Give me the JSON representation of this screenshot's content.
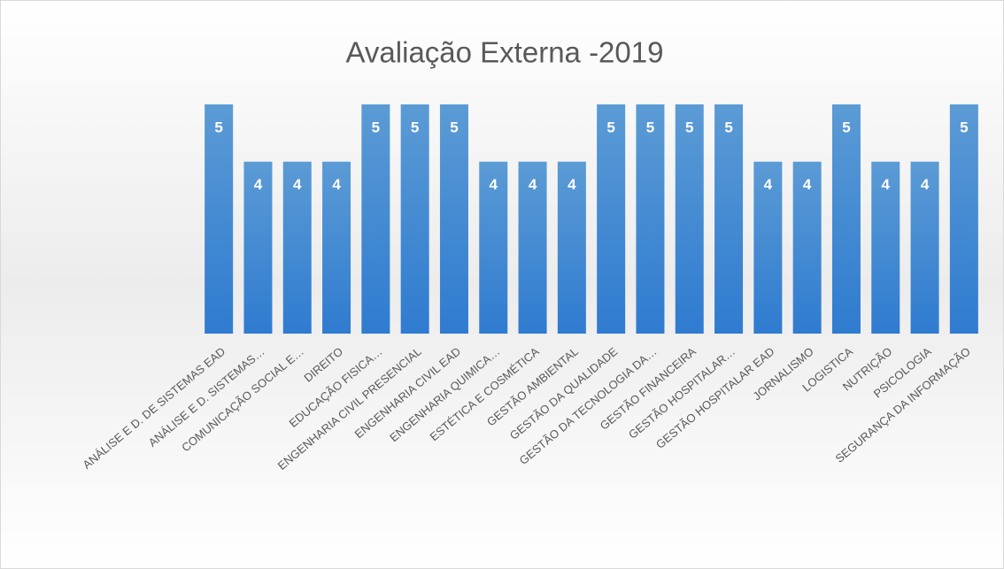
{
  "chart_data": {
    "type": "bar",
    "title": "Avaliação Externa -2019",
    "categories": [
      "ANÁLISE E D. DE SISTEMAS EAD",
      "ANÁLISE E D. SISTEMAS…",
      "COMUNICAÇÃO SOCIAL E…",
      "DIREITO",
      "EDUCAÇÃO FISICA…",
      "ENGENHARIA CIVIL PRESENCIAL",
      "ENGENHARIA CIVIL EAD",
      "ENGENHARIA QUIMICA…",
      "ESTÉTICA E COSMÉTICA",
      "GESTÃO AMBIENTAL",
      "GESTÃO DA QUALIDADE",
      "GESTÃO DA TECNOLOGIA DA…",
      "GESTÃO FINANCEIRA",
      "GESTÃO HOSPITALAR…",
      "GESTÃO HOSPITALAR EAD",
      "JORNALISMO",
      "LOGISTICA",
      "NUTRIÇÃO",
      "PSICOLOGIA",
      "SEGURANÇA DA INFORMAÇÃO"
    ],
    "values": [
      5,
      4,
      4,
      4,
      5,
      5,
      5,
      4,
      4,
      4,
      5,
      5,
      5,
      5,
      4,
      4,
      5,
      4,
      4,
      5
    ],
    "color": "#4a90d9",
    "ylim": [
      1,
      5.2
    ]
  }
}
